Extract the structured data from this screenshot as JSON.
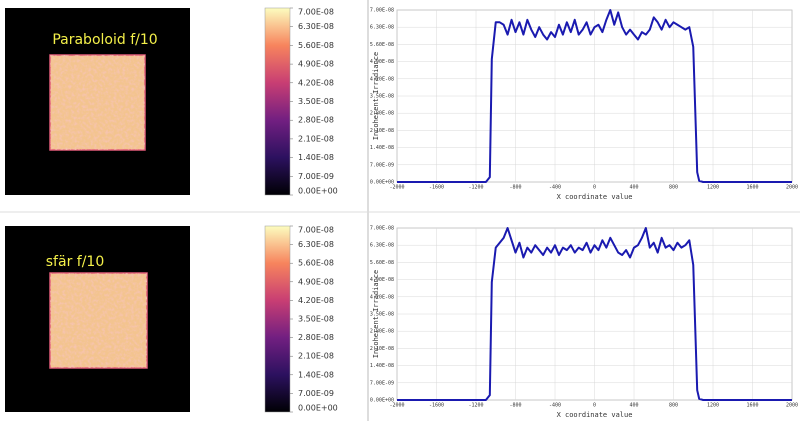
{
  "panels": [
    {
      "image_label": "Paraboloid f/10",
      "colorbar": {
        "range": [
          0,
          7e-08
        ],
        "ticks": [
          {
            "value": 0,
            "label": "0.00E+00"
          },
          {
            "value": 7e-09,
            "label": "7.00E-09"
          },
          {
            "value": 1.4e-08,
            "label": "1.40E-08"
          },
          {
            "value": 2.1e-08,
            "label": "2.10E-08"
          },
          {
            "value": 2.8e-08,
            "label": "2.80E-08"
          },
          {
            "value": 3.5e-08,
            "label": "3.50E-08"
          },
          {
            "value": 4.2e-08,
            "label": "4.20E-08"
          },
          {
            "value": 4.9e-08,
            "label": "4.90E-08"
          },
          {
            "value": 5.6e-08,
            "label": "5.60E-08"
          },
          {
            "value": 6.3e-08,
            "label": "6.30E-08"
          },
          {
            "value": 7e-08,
            "label": "7.00E-08"
          }
        ]
      }
    },
    {
      "image_label": "sfär f/10",
      "colorbar": {
        "range": [
          0,
          7e-08
        ],
        "ticks": [
          {
            "value": 0,
            "label": "0.00E+00"
          },
          {
            "value": 7e-09,
            "label": "7.00E-09"
          },
          {
            "value": 1.4e-08,
            "label": "1.40E-08"
          },
          {
            "value": 2.1e-08,
            "label": "2.10E-08"
          },
          {
            "value": 2.8e-08,
            "label": "2.80E-08"
          },
          {
            "value": 3.5e-08,
            "label": "3.50E-08"
          },
          {
            "value": 4.2e-08,
            "label": "4.20E-08"
          },
          {
            "value": 4.9e-08,
            "label": "4.90E-08"
          },
          {
            "value": 5.6e-08,
            "label": "5.60E-08"
          },
          {
            "value": 6.3e-08,
            "label": "6.30E-08"
          },
          {
            "value": 7e-08,
            "label": "7.00E-08"
          }
        ]
      }
    }
  ],
  "chart_data": [
    {
      "type": "line",
      "xlabel": "X coordinate value",
      "ylabel": "Incoherent Irradiance",
      "x": [
        -2000,
        -1100,
        -1060,
        -1040,
        -1000,
        -960,
        -920,
        -880,
        -840,
        -800,
        -760,
        -720,
        -680,
        -640,
        -600,
        -560,
        -520,
        -480,
        -440,
        -400,
        -360,
        -320,
        -280,
        -240,
        -200,
        -160,
        -120,
        -80,
        -40,
        0,
        40,
        80,
        120,
        160,
        200,
        240,
        280,
        320,
        360,
        400,
        440,
        480,
        520,
        560,
        600,
        640,
        680,
        720,
        760,
        800,
        840,
        880,
        920,
        960,
        1000,
        1040,
        1060,
        1100,
        2000
      ],
      "series": [
        {
          "color": "#1a1ab0",
          "values": [
            0,
            0,
            2e-09,
            5e-08,
            6.5e-08,
            6.5e-08,
            6.4e-08,
            6e-08,
            6.6e-08,
            6.1e-08,
            6.5e-08,
            6e-08,
            6.6e-08,
            6.2e-08,
            5.9e-08,
            6.3e-08,
            6e-08,
            5.8e-08,
            6.1e-08,
            5.9e-08,
            6.4e-08,
            6e-08,
            6.5e-08,
            6.1e-08,
            6.6e-08,
            6e-08,
            6.2e-08,
            6.5e-08,
            6e-08,
            6.3e-08,
            6.4e-08,
            6.1e-08,
            6.6e-08,
            7e-08,
            6.4e-08,
            6.9e-08,
            6.3e-08,
            6e-08,
            6.2e-08,
            6e-08,
            5.8e-08,
            6.1e-08,
            6e-08,
            6.2e-08,
            6.7e-08,
            6.5e-08,
            6.2e-08,
            6.6e-08,
            6.3e-08,
            6.5e-08,
            6.4e-08,
            6.3e-08,
            6.2e-08,
            6.3e-08,
            5.5e-08,
            4e-09,
            5e-10,
            0,
            0
          ]
        }
      ],
      "xlim": [
        -2000,
        2000
      ],
      "xticks": [
        -2000,
        -1600,
        -1200,
        -800,
        -400,
        0,
        400,
        800,
        1200,
        1600,
        2000
      ],
      "ylim": [
        0,
        7e-08
      ],
      "yticks": [
        {
          "value": 0,
          "label": "0.00E+00"
        },
        {
          "value": 7e-09,
          "label": "7.00E-09"
        },
        {
          "value": 1.4e-08,
          "label": "1.40E-08"
        },
        {
          "value": 2.1e-08,
          "label": "2.10E-08"
        },
        {
          "value": 2.8e-08,
          "label": "2.80E-08"
        },
        {
          "value": 3.5e-08,
          "label": "3.50E-08"
        },
        {
          "value": 4.2e-08,
          "label": "4.20E-08"
        },
        {
          "value": 4.9e-08,
          "label": "4.90E-08"
        },
        {
          "value": 5.6e-08,
          "label": "5.60E-08"
        },
        {
          "value": 6.3e-08,
          "label": "6.30E-08"
        },
        {
          "value": 7e-08,
          "label": "7.00E-08"
        }
      ],
      "grid": true
    },
    {
      "type": "line",
      "xlabel": "X coordinate value",
      "ylabel": "Incoherent Irradiance",
      "x": [
        -2000,
        -1100,
        -1060,
        -1040,
        -1000,
        -960,
        -920,
        -880,
        -840,
        -800,
        -760,
        -720,
        -680,
        -640,
        -600,
        -560,
        -520,
        -480,
        -440,
        -400,
        -360,
        -320,
        -280,
        -240,
        -200,
        -160,
        -120,
        -80,
        -40,
        0,
        40,
        80,
        120,
        160,
        200,
        240,
        280,
        320,
        360,
        400,
        440,
        480,
        520,
        560,
        600,
        640,
        680,
        720,
        760,
        800,
        840,
        880,
        920,
        960,
        1000,
        1040,
        1060,
        1100,
        2000
      ],
      "series": [
        {
          "color": "#1a1ab0",
          "values": [
            0,
            0,
            2e-09,
            4.8e-08,
            6.2e-08,
            6.4e-08,
            6.6e-08,
            7e-08,
            6.5e-08,
            6e-08,
            6.4e-08,
            5.8e-08,
            6.2e-08,
            6e-08,
            6.3e-08,
            6.1e-08,
            5.9e-08,
            6.2e-08,
            6e-08,
            6.3e-08,
            5.9e-08,
            6.2e-08,
            6.1e-08,
            6.3e-08,
            6e-08,
            6.2e-08,
            6.1e-08,
            6.4e-08,
            6e-08,
            6.3e-08,
            6.1e-08,
            6.5e-08,
            6.2e-08,
            6.6e-08,
            6.3e-08,
            6e-08,
            5.9e-08,
            6.1e-08,
            5.8e-08,
            6.2e-08,
            6.3e-08,
            6.6e-08,
            7e-08,
            6.2e-08,
            6.4e-08,
            6e-08,
            6.6e-08,
            6.2e-08,
            6.3e-08,
            6.1e-08,
            6.4e-08,
            6.2e-08,
            6.3e-08,
            6.5e-08,
            5.5e-08,
            4e-09,
            5e-10,
            0,
            0
          ]
        }
      ],
      "xlim": [
        -2000,
        2000
      ],
      "xticks": [
        -2000,
        -1600,
        -1200,
        -800,
        -400,
        0,
        400,
        800,
        1200,
        1600,
        2000
      ],
      "ylim": [
        0,
        7e-08
      ],
      "yticks": [
        {
          "value": 0,
          "label": "0.00E+00"
        },
        {
          "value": 7e-09,
          "label": "7.00E-09"
        },
        {
          "value": 1.4e-08,
          "label": "1.40E-08"
        },
        {
          "value": 2.1e-08,
          "label": "2.10E-08"
        },
        {
          "value": 2.8e-08,
          "label": "2.80E-08"
        },
        {
          "value": 3.5e-08,
          "label": "3.50E-08"
        },
        {
          "value": 4.2e-08,
          "label": "4.20E-08"
        },
        {
          "value": 4.9e-08,
          "label": "4.90E-08"
        },
        {
          "value": 5.6e-08,
          "label": "5.60E-08"
        },
        {
          "value": 6.3e-08,
          "label": "6.30E-08"
        },
        {
          "value": 7e-08,
          "label": "7.00E-08"
        }
      ],
      "grid": true
    }
  ]
}
